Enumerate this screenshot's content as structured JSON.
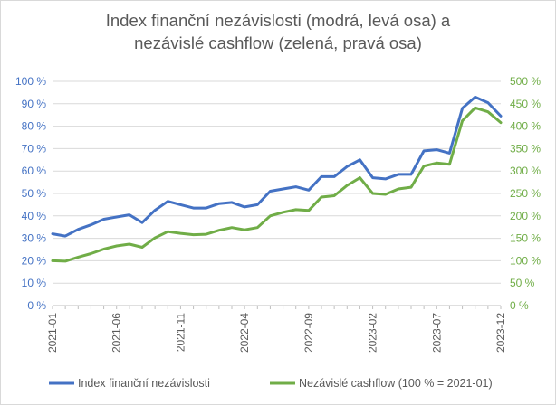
{
  "chart_data": {
    "type": "line",
    "title_line1": "Index finanční nezávislosti (modrá, levá osa) a",
    "title_line2": "nezávislé cashflow (zelená, pravá osa)",
    "x": [
      "2021-01",
      "2021-02",
      "2021-03",
      "2021-04",
      "2021-05",
      "2021-06",
      "2021-07",
      "2021-08",
      "2021-09",
      "2021-10",
      "2021-11",
      "2021-12",
      "2022-01",
      "2022-02",
      "2022-03",
      "2022-04",
      "2022-05",
      "2022-06",
      "2022-07",
      "2022-08",
      "2022-09",
      "2022-10",
      "2022-11",
      "2022-12",
      "2023-01",
      "2023-02",
      "2023-03",
      "2023-04",
      "2023-05",
      "2023-06",
      "2023-07",
      "2023-08",
      "2023-09",
      "2023-10",
      "2023-11",
      "2023-12"
    ],
    "x_tick_labels": [
      "2021-01",
      "2021-06",
      "2021-11",
      "2022-04",
      "2022-09",
      "2023-02",
      "2023-07",
      "2023-12"
    ],
    "y_left": {
      "min": 0,
      "max": 100,
      "step": 10,
      "ticks": [
        "0 %",
        "10 %",
        "20 %",
        "30 %",
        "40 %",
        "50 %",
        "60 %",
        "70 %",
        "80 %",
        "90 %",
        "100 %"
      ]
    },
    "y_right": {
      "min": 0,
      "max": 500,
      "step": 50,
      "ticks": [
        "0 %",
        "50 %",
        "100 %",
        "150 %",
        "200 %",
        "250 %",
        "300 %",
        "350 %",
        "400 %",
        "450 %",
        "500 %"
      ]
    },
    "series": [
      {
        "name": "Index finanční nezávislosti",
        "axis": "left",
        "color": "#4472c4",
        "values": [
          32,
          31,
          34,
          36,
          38.5,
          39.5,
          40.5,
          37,
          42.5,
          46.5,
          45,
          43.5,
          43.5,
          45.5,
          46,
          44,
          45,
          51,
          52,
          53,
          51.5,
          57.5,
          57.5,
          62,
          65,
          57,
          56.5,
          58.5,
          58.5,
          69,
          69.5,
          68,
          88,
          93,
          90.5,
          84.5
        ]
      },
      {
        "name": "Nezávislé cashflow (100 % = 2021-01)",
        "axis": "right",
        "color": "#70ad47",
        "values": [
          100,
          99,
          108,
          116,
          126,
          133,
          137,
          130,
          151,
          165,
          161,
          158,
          159,
          168,
          174,
          169,
          174,
          200,
          208,
          214,
          212,
          242,
          245,
          268,
          285,
          250,
          248,
          260,
          264,
          311,
          318,
          315,
          412,
          441,
          432,
          408
        ]
      }
    ],
    "grid": true,
    "legend_position": "bottom"
  }
}
